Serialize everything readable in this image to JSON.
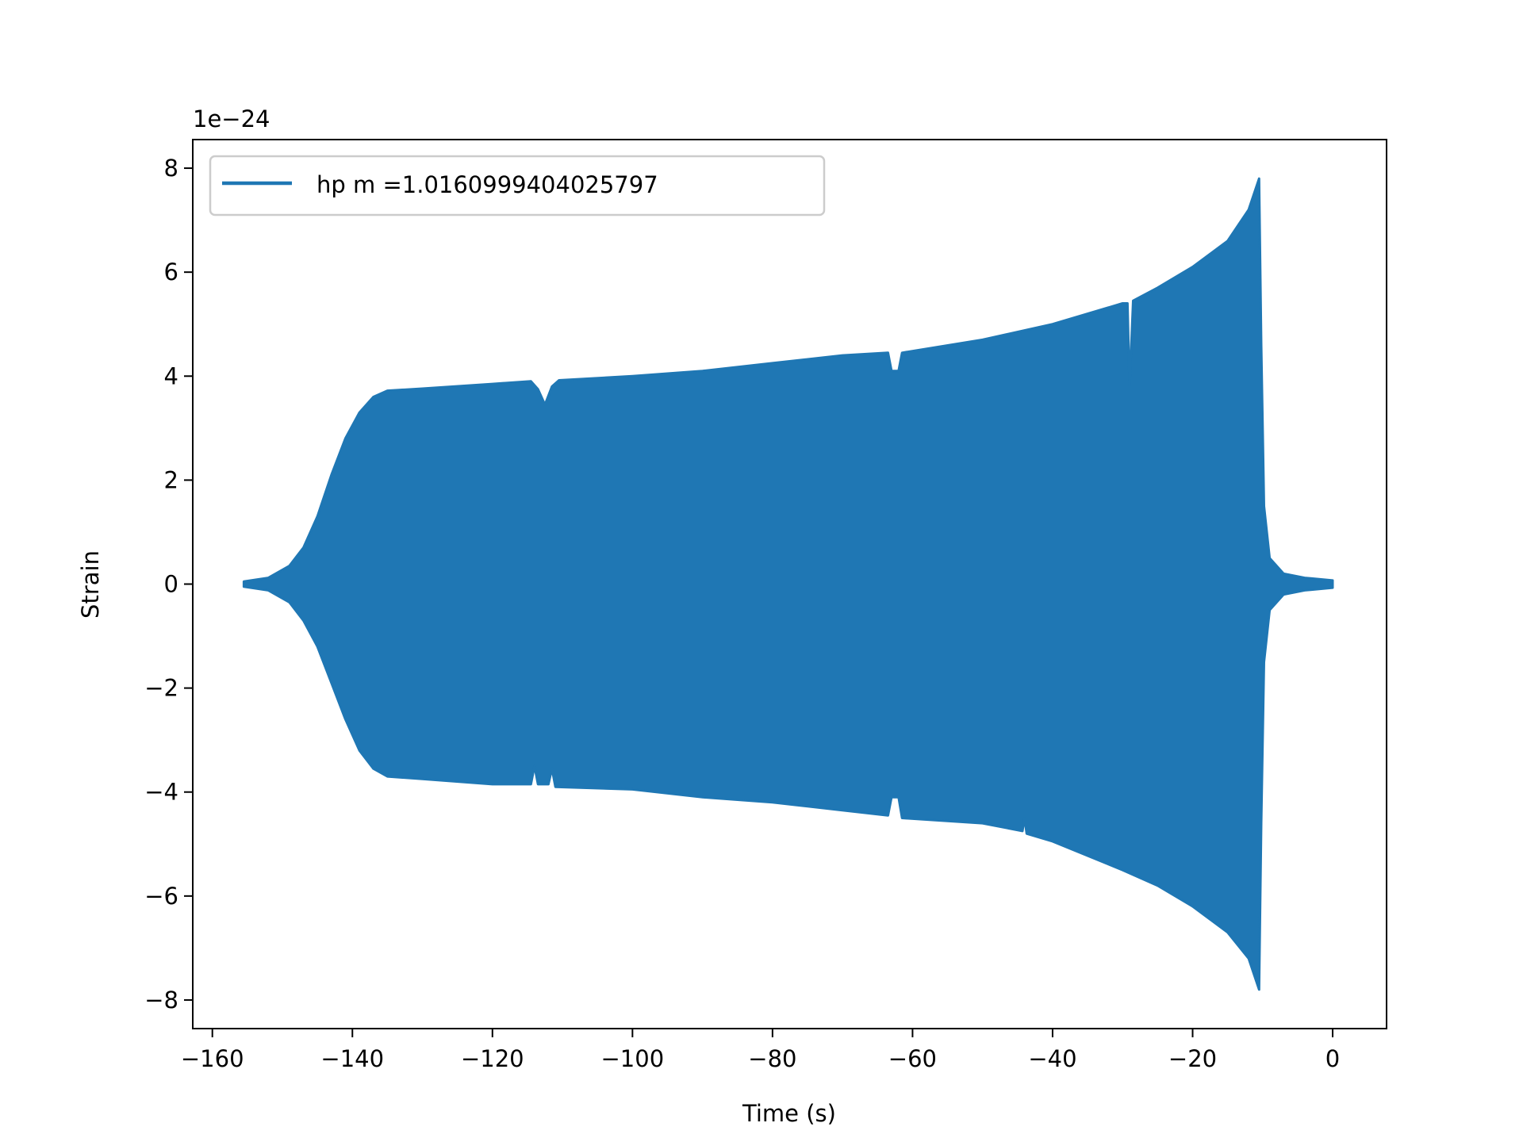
{
  "chart_data": {
    "type": "line",
    "title": "",
    "xlabel": "Time (s)",
    "ylabel": "Strain",
    "y_offset_label": "1e−24",
    "xlim": [
      -162.8,
      7.7
    ],
    "ylim": [
      -8.55,
      8.55
    ],
    "xticks": [
      -160,
      -140,
      -120,
      -100,
      -80,
      -60,
      -40,
      -20,
      0
    ],
    "xtick_labels": [
      "−160",
      "−140",
      "−120",
      "−100",
      "−80",
      "−60",
      "−40",
      "−20",
      "0"
    ],
    "yticks": [
      -8,
      -6,
      -4,
      -2,
      0,
      2,
      4,
      6,
      8
    ],
    "ytick_labels": [
      "−8",
      "−6",
      "−4",
      "−2",
      "0",
      "2",
      "4",
      "6",
      "8"
    ],
    "grid": false,
    "legend_position": "top-left",
    "series": [
      {
        "name": "hp m =1.0160999404025797",
        "color": "#1f77b4",
        "note_style": "dense oscillation; shown as envelope (units of 1e-24)",
        "envelope_upper": [
          [
            -155.5,
            0.05
          ],
          [
            -152,
            0.12
          ],
          [
            -149,
            0.35
          ],
          [
            -147,
            0.7
          ],
          [
            -145,
            1.3
          ],
          [
            -143,
            2.1
          ],
          [
            -141,
            2.8
          ],
          [
            -139,
            3.3
          ],
          [
            -137,
            3.6
          ],
          [
            -135,
            3.72
          ],
          [
            -130,
            3.76
          ],
          [
            -120,
            3.85
          ],
          [
            -114.5,
            3.9
          ],
          [
            -113.5,
            3.75
          ],
          [
            -112.5,
            3.45
          ],
          [
            -111.5,
            3.8
          ],
          [
            -110.5,
            3.92
          ],
          [
            -100,
            4.0
          ],
          [
            -90,
            4.1
          ],
          [
            -80,
            4.25
          ],
          [
            -70,
            4.4
          ],
          [
            -63.5,
            4.45
          ],
          [
            -63,
            4.1
          ],
          [
            -62,
            4.1
          ],
          [
            -61.5,
            4.45
          ],
          [
            -50,
            4.7
          ],
          [
            -40,
            5.0
          ],
          [
            -30,
            5.4
          ],
          [
            -29.3,
            5.4
          ],
          [
            -29,
            3.8
          ],
          [
            -28.5,
            5.45
          ],
          [
            -25,
            5.7
          ],
          [
            -20,
            6.1
          ],
          [
            -15,
            6.6
          ],
          [
            -12,
            7.2
          ],
          [
            -10.5,
            7.8
          ],
          [
            -10.2,
            4.6
          ],
          [
            -9.8,
            1.5
          ],
          [
            -9,
            0.5
          ],
          [
            -7,
            0.2
          ],
          [
            -4,
            0.12
          ],
          [
            0,
            0.07
          ]
        ],
        "envelope_lower": [
          [
            -155.5,
            -0.05
          ],
          [
            -152,
            -0.12
          ],
          [
            -149,
            -0.35
          ],
          [
            -147,
            -0.7
          ],
          [
            -145,
            -1.2
          ],
          [
            -143,
            -1.9
          ],
          [
            -141,
            -2.6
          ],
          [
            -139,
            -3.2
          ],
          [
            -137,
            -3.55
          ],
          [
            -135,
            -3.7
          ],
          [
            -130,
            -3.75
          ],
          [
            -120,
            -3.85
          ],
          [
            -114.5,
            -3.85
          ],
          [
            -114,
            -3.5
          ],
          [
            -113.5,
            -3.85
          ],
          [
            -112,
            -3.85
          ],
          [
            -111.5,
            -3.55
          ],
          [
            -111,
            -3.9
          ],
          [
            -100,
            -3.95
          ],
          [
            -90,
            -4.1
          ],
          [
            -80,
            -4.2
          ],
          [
            -70,
            -4.35
          ],
          [
            -63.5,
            -4.45
          ],
          [
            -63,
            -4.1
          ],
          [
            -62,
            -4.1
          ],
          [
            -61.5,
            -4.5
          ],
          [
            -50,
            -4.6
          ],
          [
            -44.3,
            -4.75
          ],
          [
            -44,
            -4.5
          ],
          [
            -43.7,
            -4.8
          ],
          [
            -40,
            -4.95
          ],
          [
            -30,
            -5.5
          ],
          [
            -25,
            -5.8
          ],
          [
            -20,
            -6.2
          ],
          [
            -15,
            -6.7
          ],
          [
            -12,
            -7.2
          ],
          [
            -10.5,
            -7.8
          ],
          [
            -10.2,
            -4.6
          ],
          [
            -9.8,
            -1.5
          ],
          [
            -9,
            -0.5
          ],
          [
            -7,
            -0.2
          ],
          [
            -4,
            -0.12
          ],
          [
            0,
            -0.07
          ]
        ]
      }
    ]
  }
}
